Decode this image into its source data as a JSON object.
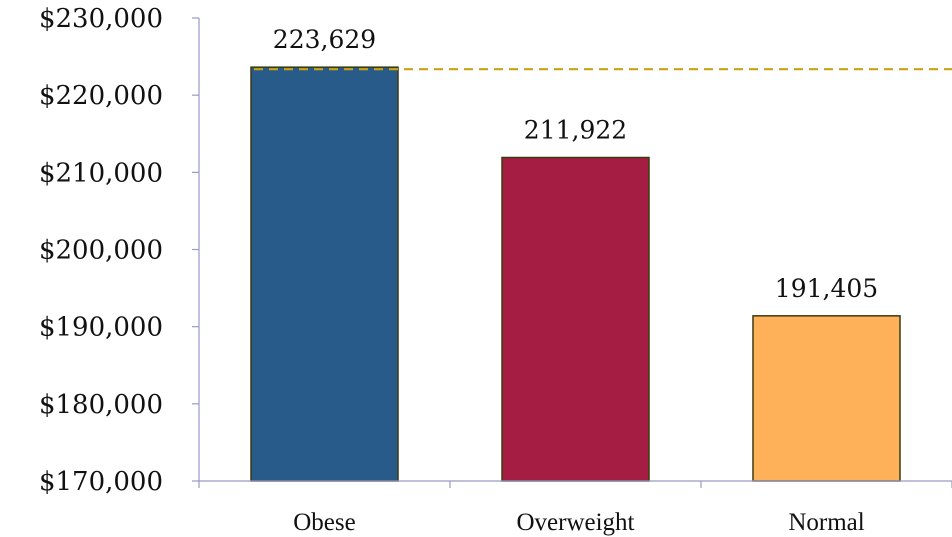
{
  "chart_data": {
    "type": "bar",
    "title": "",
    "xlabel": "",
    "ylabel": "",
    "categories": [
      "Obese",
      "Overweight",
      "Normal"
    ],
    "values": [
      223629,
      211922,
      191405
    ],
    "data_labels": [
      "223,629",
      "211,922",
      "191,405"
    ],
    "y_tick_values": [
      170000,
      180000,
      190000,
      200000,
      210000,
      220000,
      230000
    ],
    "y_tick_labels": [
      "$170,000",
      "$180,000",
      "$190,000",
      "$200,000",
      "$210,000",
      "$220,000",
      "$230,000"
    ],
    "ylim": [
      170000,
      230000
    ],
    "grid": false,
    "legend": "none",
    "bar_colors": [
      "#285A8A",
      "#A51D43",
      "#FFB15A"
    ],
    "bar_edge_color": "#3a3a10",
    "reference_line": {
      "value": 223629,
      "style": "dashed",
      "color": "#C8A415"
    }
  }
}
